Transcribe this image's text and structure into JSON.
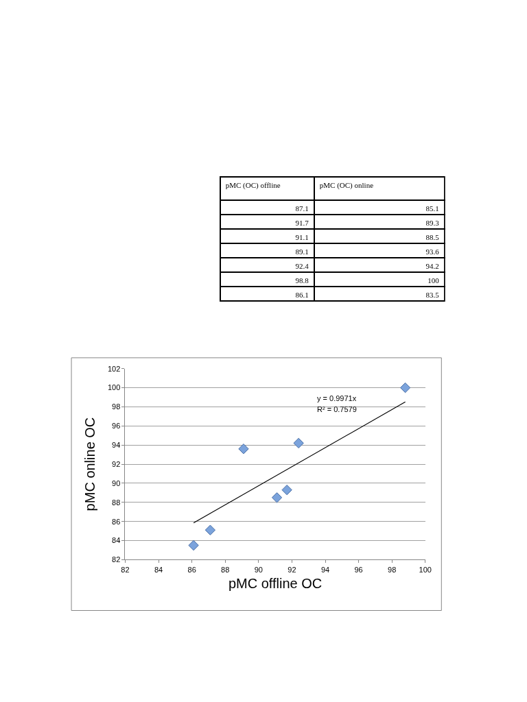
{
  "chart_data": [
    {
      "type": "other",
      "annotations": [
        "pMC (OC) offline",
        "pMC (OC) online",
        "87.1",
        "85.1",
        "91.7",
        "89.3",
        "91.1",
        "88.5",
        "89.1",
        "93.6",
        "92.4",
        "94.2",
        "98.8",
        "100",
        "86.1",
        "83.5"
      ]
    },
    {
      "type": "scatter",
      "xlabel": "pMC offline OC",
      "ylabel": "pMC online OC",
      "x": [
        87.1,
        91.7,
        91.1,
        89.1,
        92.4,
        98.8,
        86.1
      ],
      "series": [
        {
          "color": "#7ba3dc",
          "values": [
            85.1,
            89.3,
            88.5,
            93.6,
            94.2,
            100,
            83.5
          ]
        },
        {
          "type": "line",
          "color": "#000000",
          "x": [
            86.1,
            98.8
          ],
          "values": [
            85.85,
            98.51
          ],
          "marker": "none"
        }
      ],
      "annotations": [
        "y = 0.9971x",
        "R² = 0.7579"
      ],
      "xlim": [
        82,
        100
      ],
      "xticks": [
        82,
        84,
        86,
        88,
        90,
        92,
        94,
        96,
        98,
        100
      ],
      "ylim": [
        82,
        102
      ],
      "yticks": [
        82,
        84,
        86,
        88,
        90,
        92,
        94,
        96,
        98,
        100,
        102
      ],
      "grid": "y",
      "marker": "diamond"
    }
  ]
}
